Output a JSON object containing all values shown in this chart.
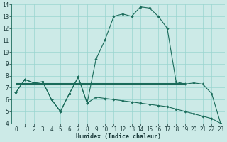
{
  "xlabel": "Humidex (Indice chaleur)",
  "xlim": [
    -0.5,
    23.5
  ],
  "ylim": [
    4,
    14
  ],
  "xticks": [
    0,
    1,
    2,
    3,
    4,
    5,
    6,
    7,
    8,
    9,
    10,
    11,
    12,
    13,
    14,
    15,
    16,
    17,
    18,
    19,
    20,
    21,
    22,
    23
  ],
  "yticks": [
    4,
    5,
    6,
    7,
    8,
    9,
    10,
    11,
    12,
    13,
    14
  ],
  "bg_color": "#cceae7",
  "grid_color": "#99d5cf",
  "line_color": "#1a6b5a",
  "line1_x": [
    0,
    1,
    2,
    3,
    4,
    5,
    6,
    7,
    8,
    9,
    10,
    11,
    12,
    13,
    14,
    15,
    16,
    17,
    18,
    19,
    20,
    21,
    22,
    23
  ],
  "line1_y": [
    6.6,
    7.7,
    7.4,
    7.5,
    6.0,
    5.0,
    6.5,
    7.9,
    5.7,
    9.4,
    11.0,
    13.0,
    13.2,
    13.0,
    13.8,
    13.7,
    13.0,
    12.0,
    7.5,
    7.3,
    7.4,
    7.3,
    6.5,
    4.0
  ],
  "line2_x": [
    0,
    1,
    2,
    3,
    4,
    5,
    6,
    7,
    8,
    9,
    10,
    11,
    12,
    13,
    14,
    15,
    16,
    17,
    18,
    19,
    20,
    21,
    22,
    23
  ],
  "line2_y": [
    6.6,
    7.7,
    7.4,
    7.5,
    6.0,
    5.0,
    6.5,
    7.9,
    5.7,
    6.2,
    6.1,
    6.0,
    5.9,
    5.8,
    5.7,
    5.6,
    5.5,
    5.4,
    5.2,
    5.0,
    4.8,
    4.6,
    4.4,
    4.0
  ],
  "hline_y": 7.3,
  "hline_x_start": 0,
  "hline_x_end": 19,
  "xlabel_fontsize": 6,
  "tick_fontsize": 5.5,
  "figsize": [
    3.2,
    2.0
  ],
  "dpi": 100
}
